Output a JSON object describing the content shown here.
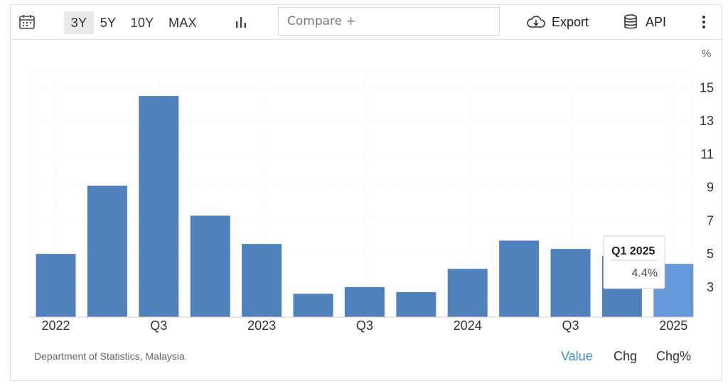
{
  "toolbar": {
    "ranges": [
      "3Y",
      "5Y",
      "10Y",
      "MAX"
    ],
    "active_range": "3Y",
    "compare_placeholder": "Compare +",
    "export_label": "Export",
    "api_label": "API",
    "icons": {
      "calendar": "calendar-icon",
      "chart_type": "bar-chart-icon",
      "export": "cloud-download-icon",
      "api": "database-icon",
      "menu": "more-vertical-icon"
    }
  },
  "chart_data": {
    "type": "bar",
    "unit": "%",
    "categories": [
      "Q1 2022",
      "Q2 2022",
      "Q3 2022",
      "Q4 2022",
      "Q1 2023",
      "Q2 2023",
      "Q3 2023",
      "Q4 2023",
      "Q1 2024",
      "Q2 2024",
      "Q3 2024",
      "Q4 2024",
      "Q1 2025"
    ],
    "values": [
      5.0,
      9.1,
      14.5,
      7.3,
      5.6,
      2.6,
      3.0,
      2.7,
      4.1,
      5.8,
      5.3,
      4.9,
      4.4
    ],
    "x_tick_labels": [
      "2022",
      "",
      "Q3",
      "",
      "2023",
      "",
      "Q3",
      "",
      "2024",
      "",
      "Q3",
      "",
      "2025"
    ],
    "y_ticks": [
      3,
      5,
      7,
      9,
      11,
      13,
      15
    ],
    "ylim": [
      1.2,
      16
    ],
    "bar_color": "#4f81bd",
    "highlight_color": "#6699d9",
    "highlighted_index": 12,
    "tooltip": {
      "title": "Q1 2025",
      "value": "4.4%"
    }
  },
  "footer": {
    "source": "Department of Statistics, Malaysia",
    "modes": [
      "Value",
      "Chg",
      "Chg%"
    ],
    "active_mode": "Value",
    "accent_color": "#3d8fd6"
  }
}
